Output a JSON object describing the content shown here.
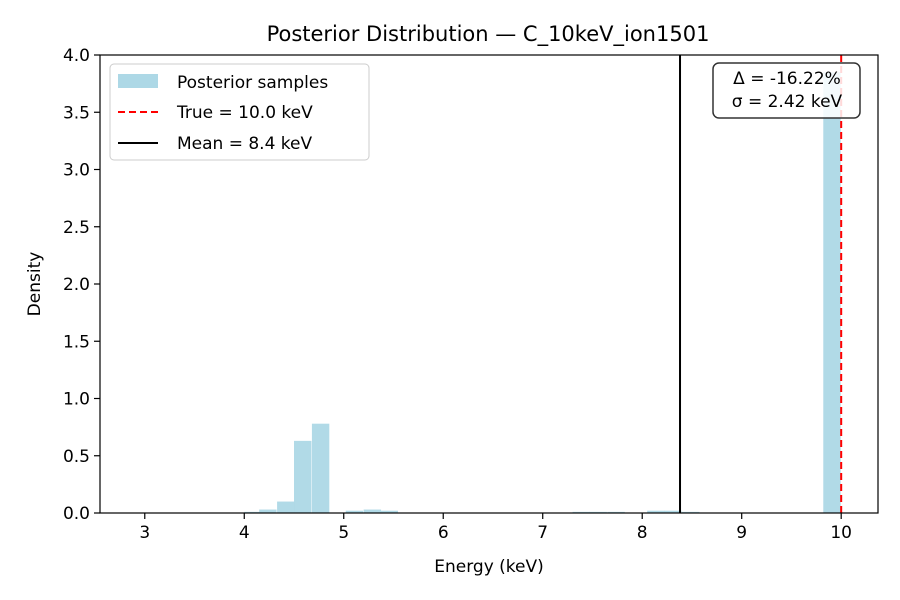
{
  "chart_data": {
    "type": "histogram",
    "title": "Posterior Distribution — C_10keV_ion1501",
    "xlabel": "Energy (keV)",
    "ylabel": "Density",
    "xlim": [
      2.55,
      10.37
    ],
    "ylim": [
      0.0,
      4.0
    ],
    "xticks": [
      "3",
      "4",
      "5",
      "6",
      "7",
      "8",
      "9",
      "10"
    ],
    "yticks": [
      "0.0",
      "0.5",
      "1.0",
      "1.5",
      "2.0",
      "2.5",
      "3.0",
      "3.5",
      "4.0"
    ],
    "grid": false,
    "legend_position": "upper-left",
    "bin_width": 0.175,
    "bins": [
      {
        "x0": 4.0,
        "density": 0.01
      },
      {
        "x0": 4.15,
        "density": 0.03
      },
      {
        "x0": 4.33,
        "density": 0.1
      },
      {
        "x0": 4.5,
        "density": 0.63
      },
      {
        "x0": 4.68,
        "density": 0.78
      },
      {
        "x0": 5.02,
        "density": 0.02
      },
      {
        "x0": 5.2,
        "density": 0.03
      },
      {
        "x0": 5.37,
        "density": 0.02
      },
      {
        "x0": 7.3,
        "density": 0.01
      },
      {
        "x0": 7.47,
        "density": 0.01
      },
      {
        "x0": 7.65,
        "density": 0.01
      },
      {
        "x0": 8.05,
        "density": 0.02
      },
      {
        "x0": 8.22,
        "density": 0.02
      },
      {
        "x0": 8.4,
        "density": 0.01
      },
      {
        "x0": 9.82,
        "density": 3.85
      }
    ],
    "series": [
      {
        "name": "Posterior samples",
        "kind": "histogram",
        "color": "#add8e6"
      },
      {
        "name": "True = 10.0 keV",
        "kind": "vline",
        "x": 10.0,
        "color": "#ff0000",
        "style": "dashed"
      },
      {
        "name": "Mean = 8.4 keV",
        "kind": "vline",
        "x": 8.38,
        "color": "#000000",
        "style": "solid"
      }
    ],
    "annotation": {
      "line1": "Δ = -16.22%",
      "line2": "σ = 2.42 keV"
    }
  }
}
